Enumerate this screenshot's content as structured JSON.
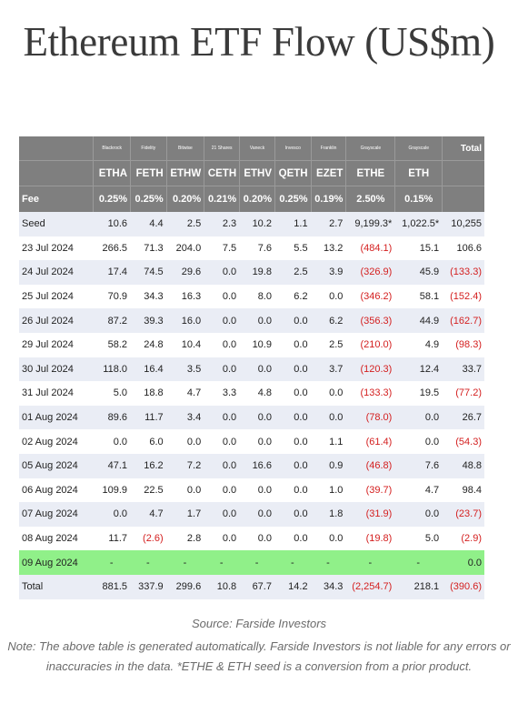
{
  "title": "Ethereum ETF Flow (US$m)",
  "providers": [
    "Blackrock",
    "Fidelity",
    "Bitwise",
    "21 Shares",
    "Vaneck",
    "Invesco",
    "Franklin",
    "Grayscale",
    "Grayscale"
  ],
  "total_header": "Total",
  "tickers": [
    "ETHA",
    "FETH",
    "ETHW",
    "CETH",
    "ETHV",
    "QETH",
    "EZET",
    "ETHE",
    "ETH"
  ],
  "fee_label": "Fee",
  "fees": [
    "0.25%",
    "0.25%",
    "0.20%",
    "0.21%",
    "0.20%",
    "0.25%",
    "0.19%",
    "2.50%",
    "0.15%"
  ],
  "rows": [
    {
      "label": "Seed",
      "values": [
        "10.6",
        "4.4",
        "2.5",
        "2.3",
        "10.2",
        "1.1",
        "2.7",
        "9,199.3*",
        "1,022.5*",
        "10,255"
      ]
    },
    {
      "label": "23 Jul 2024",
      "values": [
        "266.5",
        "71.3",
        "204.0",
        "7.5",
        "7.6",
        "5.5",
        "13.2",
        "(484.1)",
        "15.1",
        "106.6"
      ]
    },
    {
      "label": "24 Jul 2024",
      "values": [
        "17.4",
        "74.5",
        "29.6",
        "0.0",
        "19.8",
        "2.5",
        "3.9",
        "(326.9)",
        "45.9",
        "(133.3)"
      ]
    },
    {
      "label": "25 Jul 2024",
      "values": [
        "70.9",
        "34.3",
        "16.3",
        "0.0",
        "8.0",
        "6.2",
        "0.0",
        "(346.2)",
        "58.1",
        "(152.4)"
      ]
    },
    {
      "label": "26 Jul 2024",
      "values": [
        "87.2",
        "39.3",
        "16.0",
        "0.0",
        "0.0",
        "0.0",
        "6.2",
        "(356.3)",
        "44.9",
        "(162.7)"
      ]
    },
    {
      "label": "29 Jul 2024",
      "values": [
        "58.2",
        "24.8",
        "10.4",
        "0.0",
        "10.9",
        "0.0",
        "2.5",
        "(210.0)",
        "4.9",
        "(98.3)"
      ]
    },
    {
      "label": "30 Jul 2024",
      "values": [
        "118.0",
        "16.4",
        "3.5",
        "0.0",
        "0.0",
        "0.0",
        "3.7",
        "(120.3)",
        "12.4",
        "33.7"
      ]
    },
    {
      "label": "31 Jul 2024",
      "values": [
        "5.0",
        "18.8",
        "4.7",
        "3.3",
        "4.8",
        "0.0",
        "0.0",
        "(133.3)",
        "19.5",
        "(77.2)"
      ]
    },
    {
      "label": "01 Aug 2024",
      "values": [
        "89.6",
        "11.7",
        "3.4",
        "0.0",
        "0.0",
        "0.0",
        "0.0",
        "(78.0)",
        "0.0",
        "26.7"
      ]
    },
    {
      "label": "02 Aug 2024",
      "values": [
        "0.0",
        "6.0",
        "0.0",
        "0.0",
        "0.0",
        "0.0",
        "1.1",
        "(61.4)",
        "0.0",
        "(54.3)"
      ]
    },
    {
      "label": "05 Aug 2024",
      "values": [
        "47.1",
        "16.2",
        "7.2",
        "0.0",
        "16.6",
        "0.0",
        "0.9",
        "(46.8)",
        "7.6",
        "48.8"
      ]
    },
    {
      "label": "06 Aug 2024",
      "values": [
        "109.9",
        "22.5",
        "0.0",
        "0.0",
        "0.0",
        "0.0",
        "1.0",
        "(39.7)",
        "4.7",
        "98.4"
      ]
    },
    {
      "label": "07 Aug 2024",
      "values": [
        "0.0",
        "4.7",
        "1.7",
        "0.0",
        "0.0",
        "0.0",
        "1.8",
        "(31.9)",
        "0.0",
        "(23.7)"
      ]
    },
    {
      "label": "08 Aug 2024",
      "values": [
        "11.7",
        "(2.6)",
        "2.8",
        "0.0",
        "0.0",
        "0.0",
        "0.0",
        "(19.8)",
        "5.0",
        "(2.9)"
      ]
    },
    {
      "label": "09 Aug 2024",
      "values": [
        "-",
        "-",
        "-",
        "-",
        "-",
        "-",
        "-",
        "-",
        "-",
        "0.0"
      ],
      "highlight": true
    },
    {
      "label": "Total",
      "values": [
        "881.5",
        "337.9",
        "299.6",
        "10.8",
        "67.7",
        "14.2",
        "34.3",
        "(2,254.7)",
        "218.1",
        "(390.6)"
      ]
    }
  ],
  "colors": {
    "header_bg": "#7f7f7f",
    "row_alt": "#eaedf5",
    "highlight": "#90f089",
    "negative": "#d42020"
  },
  "source": "Source: Farside Investors",
  "note": "Note: The above table is generated automatically. Farside Investors is not liable for any errors or inaccuracies in the data. *ETHE & ETH seed is a conversion from a prior product."
}
